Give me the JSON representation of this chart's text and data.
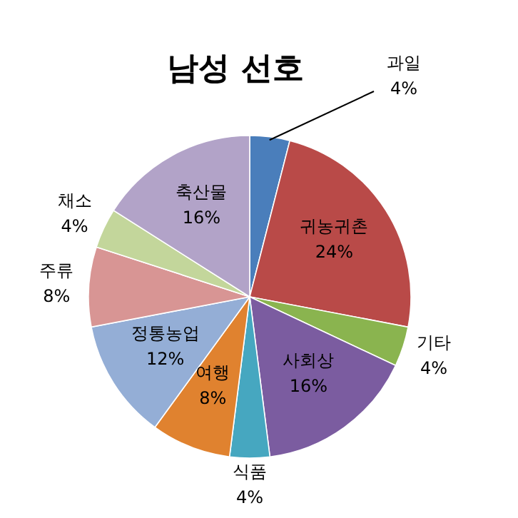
{
  "chart_data": {
    "type": "pie",
    "title": "남성 선호",
    "categories": [
      "과일",
      "귀농귀촌",
      "기타",
      "사회상",
      "식품",
      "여행",
      "정통농업",
      "주류",
      "채소",
      "축산물"
    ],
    "values": [
      4,
      24,
      4,
      16,
      4,
      8,
      12,
      8,
      4,
      16
    ],
    "value_labels": [
      "4%",
      "24%",
      "4%",
      "16%",
      "4%",
      "8%",
      "12%",
      "8%",
      "4%",
      "16%"
    ],
    "colors": [
      "#4a7ebb",
      "#b94a48",
      "#8ab44f",
      "#7b5ca0",
      "#46a7c0",
      "#e0822f",
      "#94aed6",
      "#d89594",
      "#c3d69b",
      "#b2a3c8"
    ],
    "legend": false
  }
}
